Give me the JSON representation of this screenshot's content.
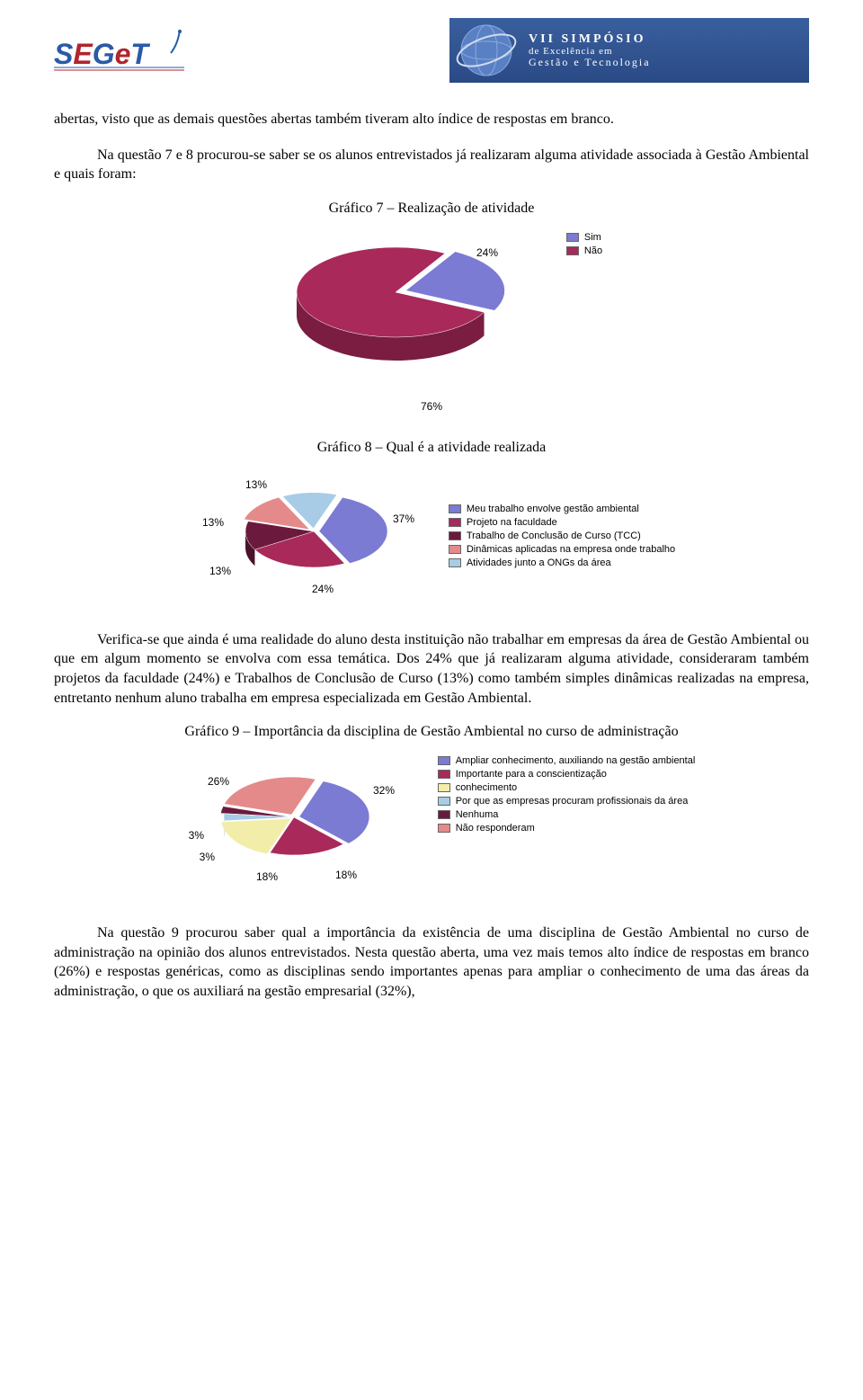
{
  "header": {
    "left_logo_text": "SEGeT",
    "right_logo_line1": "VII SIMPÓSIO",
    "right_logo_line2": "de Excelência em",
    "right_logo_line3": "Gestão e Tecnologia"
  },
  "paragraphs": {
    "p1": "abertas, visto que as demais questões abertas também tiveram alto índice de respostas em branco.",
    "p2": "Na questão 7 e 8 procurou-se saber se os alunos entrevistados já realizaram alguma atividade associada à Gestão Ambiental e quais foram:",
    "p3": "Verifica-se que ainda é uma realidade do aluno desta instituição não trabalhar em empresas da área de Gestão Ambiental ou que em algum momento se envolva com essa temática. Dos 24% que já realizaram alguma atividade, consideraram também projetos da faculdade (24%) e Trabalhos de Conclusão de Curso (13%) como também simples dinâmicas realizadas na empresa, entretanto nenhum aluno trabalha em empresa especializada em Gestão Ambiental.",
    "p4": "Na questão 9 procurou saber qual a importância da existência de uma disciplina de Gestão Ambiental no curso de administração na opinião dos alunos entrevistados. Nesta questão aberta, uma vez mais temos alto índice de respostas em branco (26%) e respostas genéricas, como as disciplinas sendo importantes apenas para ampliar o conhecimento de uma das áreas da administração, o que os auxiliará na gestão empresarial (32%),"
  },
  "chart7": {
    "title": "Gráfico 7 – Realização de atividade",
    "type": "pie",
    "values": [
      24,
      76
    ],
    "labels": [
      "Sim",
      "Não"
    ],
    "colors": [
      "#7b7bd4",
      "#a8295a"
    ],
    "side_colors": [
      "#5a5aa8",
      "#7a1d41"
    ],
    "pct_labels": [
      "24%",
      "76%"
    ],
    "legend_fontsize": 11,
    "background_color": "#ffffff"
  },
  "chart8": {
    "title": "Gráfico 8 – Qual é a atividade realizada",
    "type": "pie",
    "values": [
      37,
      24,
      13,
      13,
      13
    ],
    "labels": [
      "Meu trabalho envolve gestão ambiental",
      "Projeto na faculdade",
      "Trabalho de Conclusão de Curso (TCC)",
      "Dinâmicas aplicadas na empresa onde trabalho",
      "Atividades junto a ONGs da área"
    ],
    "colors": [
      "#7b7bd4",
      "#a8295a",
      "#6b1a3e",
      "#e58a8a",
      "#a8cce5"
    ],
    "side_colors": [
      "#5a5aa8",
      "#7a1d41",
      "#4a122b",
      "#b86a6a",
      "#7fa3ba"
    ],
    "pct_labels": [
      "37%",
      "24%",
      "13%",
      "13%",
      "13%"
    ],
    "legend_fontsize": 11,
    "background_color": "#ffffff"
  },
  "chart9": {
    "title": "Gráfico 9 – Importância da disciplina de Gestão Ambiental no curso de administração",
    "type": "pie",
    "values": [
      32,
      18,
      18,
      3,
      3,
      26
    ],
    "labels": [
      "Ampliar conhecimento, auxiliando na gestão ambiental",
      "Importante para a conscientização",
      "conhecimento",
      "Por que as empresas procuram profissionais da área",
      "Nenhuma",
      "Não responderam"
    ],
    "colors": [
      "#7b7bd4",
      "#a8295a",
      "#f2eda8",
      "#a8cce5",
      "#6b1a3e",
      "#e58a8a"
    ],
    "side_colors": [
      "#5a5aa8",
      "#7a1d41",
      "#c4bf85",
      "#7fa3ba",
      "#4a122b",
      "#b86a6a"
    ],
    "pct_labels": [
      "32%",
      "18%",
      "18%",
      "3%",
      "3%",
      "26%"
    ],
    "legend_fontsize": 11,
    "background_color": "#ffffff"
  }
}
